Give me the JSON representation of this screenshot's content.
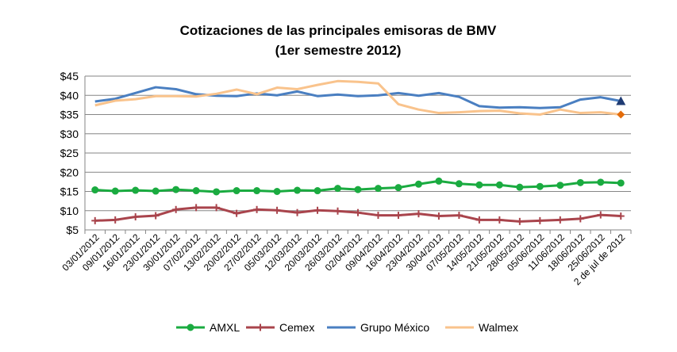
{
  "chart_data": {
    "type": "line",
    "title": "Cotizaciones de las principales emisoras de BMV",
    "subtitle": "(1er semestre 2012)",
    "xlabel": "",
    "ylabel": "",
    "ylim": [
      5,
      45
    ],
    "yticks": [
      5,
      10,
      15,
      20,
      25,
      30,
      35,
      40,
      45
    ],
    "ytick_labels": [
      "$5",
      "$10",
      "$15",
      "$20",
      "$25",
      "$30",
      "$35",
      "$40",
      "$45"
    ],
    "grid": true,
    "legend_position": "bottom",
    "categories": [
      "03/01/2012",
      "09/01/2012",
      "16/01/2012",
      "23/01/2012",
      "30/01/2012",
      "07/02/2012",
      "13/02/2012",
      "20/02/2012",
      "27/02/2012",
      "05/03/2012",
      "12/03/2012",
      "20/03/2012",
      "26/03/2012",
      "02/04/2012",
      "09/04/2012",
      "16/04/2012",
      "23/04/2012",
      "30/04/2012",
      "07/05/2012",
      "14/05/2012",
      "21/05/2012",
      "28/05/2012",
      "05/06/2012",
      "11/06/2012",
      "18/06/2012",
      "25/06/2012",
      "2 de jul de 2012"
    ],
    "series": [
      {
        "name": "AMXL",
        "color": "#1aab40",
        "marker": "circle",
        "values": [
          15.4,
          15.1,
          15.3,
          15.1,
          15.5,
          15.2,
          14.9,
          15.2,
          15.2,
          15.0,
          15.3,
          15.2,
          15.8,
          15.5,
          15.8,
          16.0,
          16.9,
          17.7,
          17.0,
          16.7,
          16.7,
          16.1,
          16.3,
          16.6,
          17.3,
          17.4,
          17.2
        ]
      },
      {
        "name": "Cemex",
        "color": "#a9444c",
        "marker": "plus",
        "values": [
          7.4,
          7.6,
          8.4,
          8.7,
          10.3,
          10.8,
          10.8,
          9.3,
          10.3,
          10.1,
          9.5,
          10.1,
          9.9,
          9.5,
          8.8,
          8.8,
          9.2,
          8.6,
          8.8,
          7.6,
          7.6,
          7.2,
          7.4,
          7.6,
          7.9,
          8.9,
          8.6
        ]
      },
      {
        "name": "Grupo México",
        "color": "#4a7fc1",
        "marker": "none",
        "end_marker": "triangle",
        "end_marker_color": "#1f3b73",
        "values": [
          38.4,
          39.1,
          40.6,
          42.1,
          41.6,
          40.3,
          39.9,
          39.8,
          40.5,
          40.0,
          41.0,
          39.8,
          40.2,
          39.8,
          40.0,
          40.6,
          39.9,
          40.6,
          39.6,
          37.2,
          36.8,
          36.9,
          36.7,
          36.9,
          38.9,
          39.5,
          38.5
        ]
      },
      {
        "name": "Walmex",
        "color": "#f9c38c",
        "marker": "none",
        "end_marker": "diamond",
        "end_marker_color": "#e36c0a",
        "values": [
          37.4,
          38.6,
          39.0,
          39.8,
          39.8,
          39.7,
          40.4,
          41.5,
          40.3,
          42.0,
          41.6,
          42.7,
          43.7,
          43.5,
          43.1,
          37.7,
          36.3,
          35.4,
          35.6,
          35.9,
          36.0,
          35.3,
          35.0,
          36.3,
          35.4,
          35.6,
          35.0
        ]
      }
    ]
  }
}
